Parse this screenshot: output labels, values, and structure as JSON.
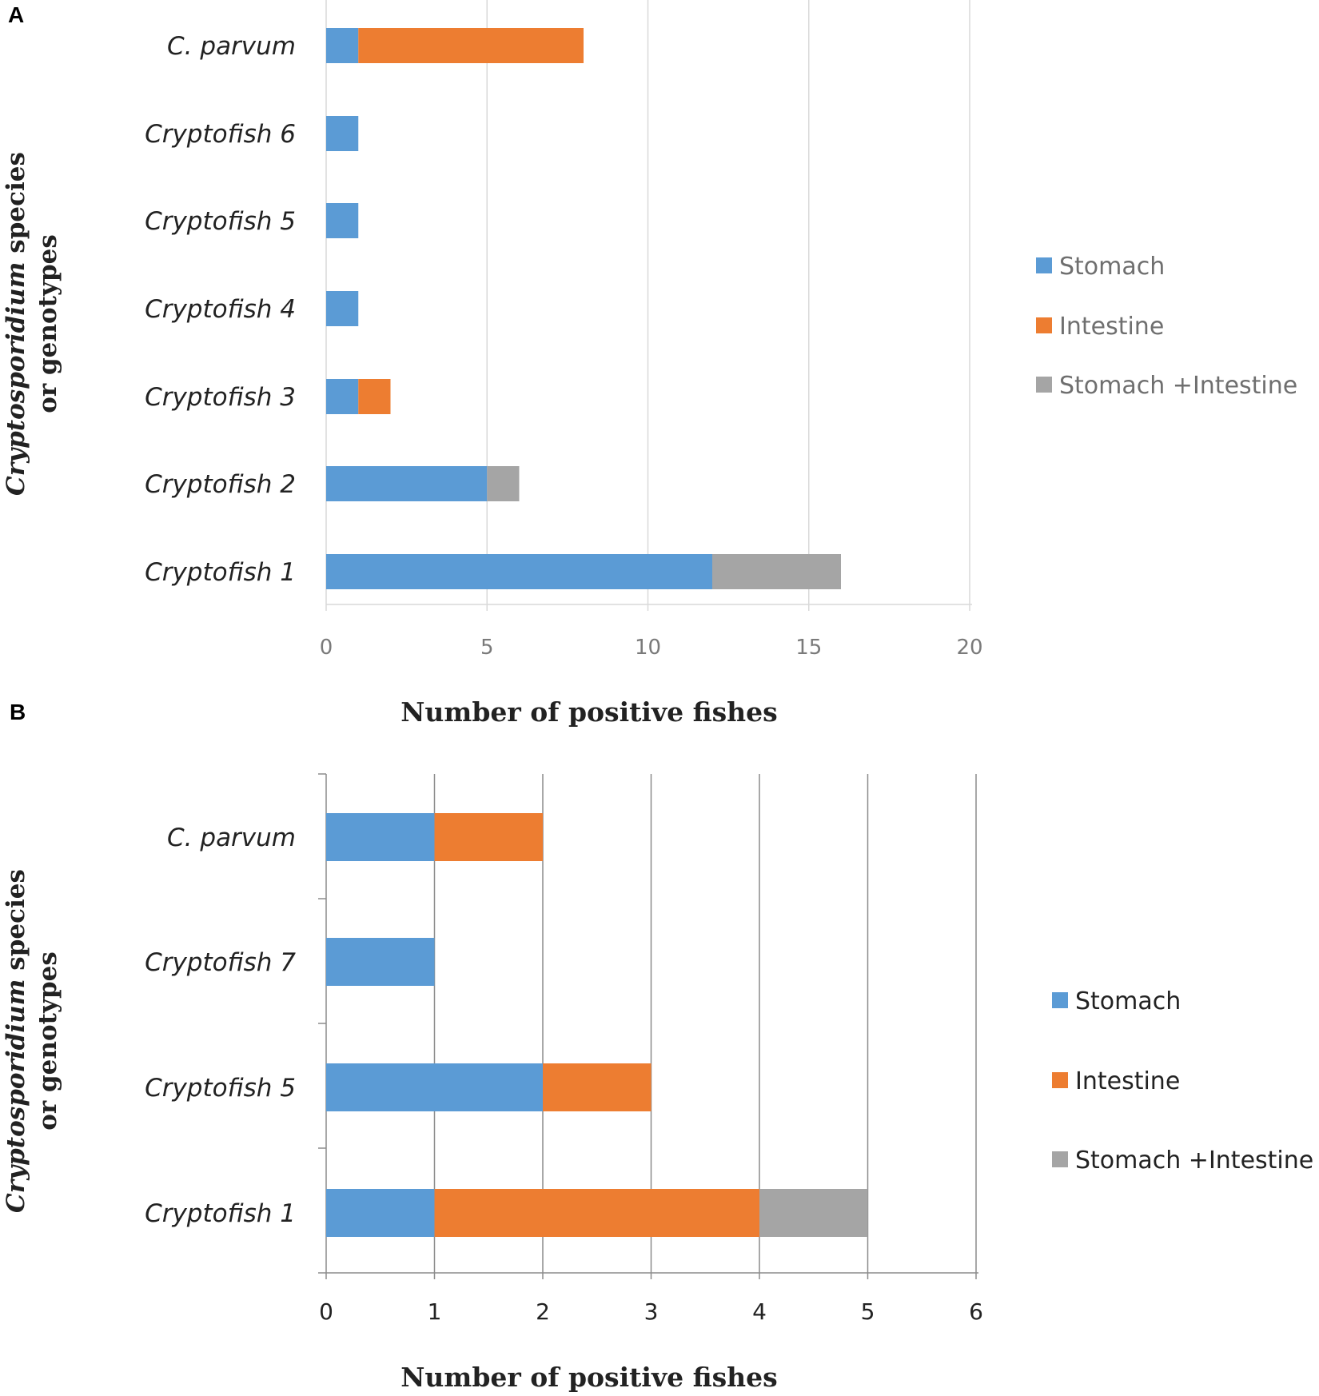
{
  "colors": {
    "stomach": "#5b9bd5",
    "intestine": "#ed7d31",
    "both": "#a5a5a5"
  },
  "chart_data": [
    {
      "panel": "A",
      "type": "bar",
      "orientation": "horizontal",
      "stacked": true,
      "title": "",
      "xlabel": "Number of positive fishes",
      "ylabel_italic": "Cryptosporidium",
      "ylabel_rest": " species",
      "ylabel_line2": "or genotypes",
      "categories": [
        "C. parvum",
        "Cryptofish 6",
        "Cryptofish 5",
        "Cryptofish 4",
        "Cryptofish 3",
        "Cryptofish 2",
        "Cryptofish 1"
      ],
      "series": [
        {
          "name": "Stomach",
          "values": [
            1,
            1,
            1,
            1,
            1,
            5,
            12
          ]
        },
        {
          "name": "Intestine",
          "values": [
            7,
            0,
            0,
            0,
            1,
            0,
            0
          ]
        },
        {
          "name": "Stomach +Intestine",
          "values": [
            0,
            0,
            0,
            0,
            0,
            1,
            4
          ]
        }
      ],
      "xlim": [
        0,
        20
      ],
      "xticks": [
        0,
        5,
        10,
        15,
        20
      ],
      "grid": true,
      "legend_position": "right"
    },
    {
      "panel": "B",
      "type": "bar",
      "orientation": "horizontal",
      "stacked": true,
      "title": "",
      "xlabel": "Number of positive fishes",
      "ylabel_italic": "Cryptosporidium",
      "ylabel_rest": " species",
      "ylabel_line2": "or genotypes",
      "categories": [
        "C. parvum",
        "Cryptofish 7",
        "Cryptofish 5",
        "Cryptofish 1"
      ],
      "series": [
        {
          "name": "Stomach",
          "values": [
            1,
            1,
            2,
            1
          ]
        },
        {
          "name": "Intestine",
          "values": [
            1,
            0,
            1,
            3
          ]
        },
        {
          "name": "Stomach +Intestine",
          "values": [
            0,
            0,
            0,
            1
          ]
        }
      ],
      "xlim": [
        0,
        6
      ],
      "xticks": [
        0,
        1,
        2,
        3,
        4,
        5,
        6
      ],
      "grid": true,
      "legend_position": "right"
    }
  ]
}
